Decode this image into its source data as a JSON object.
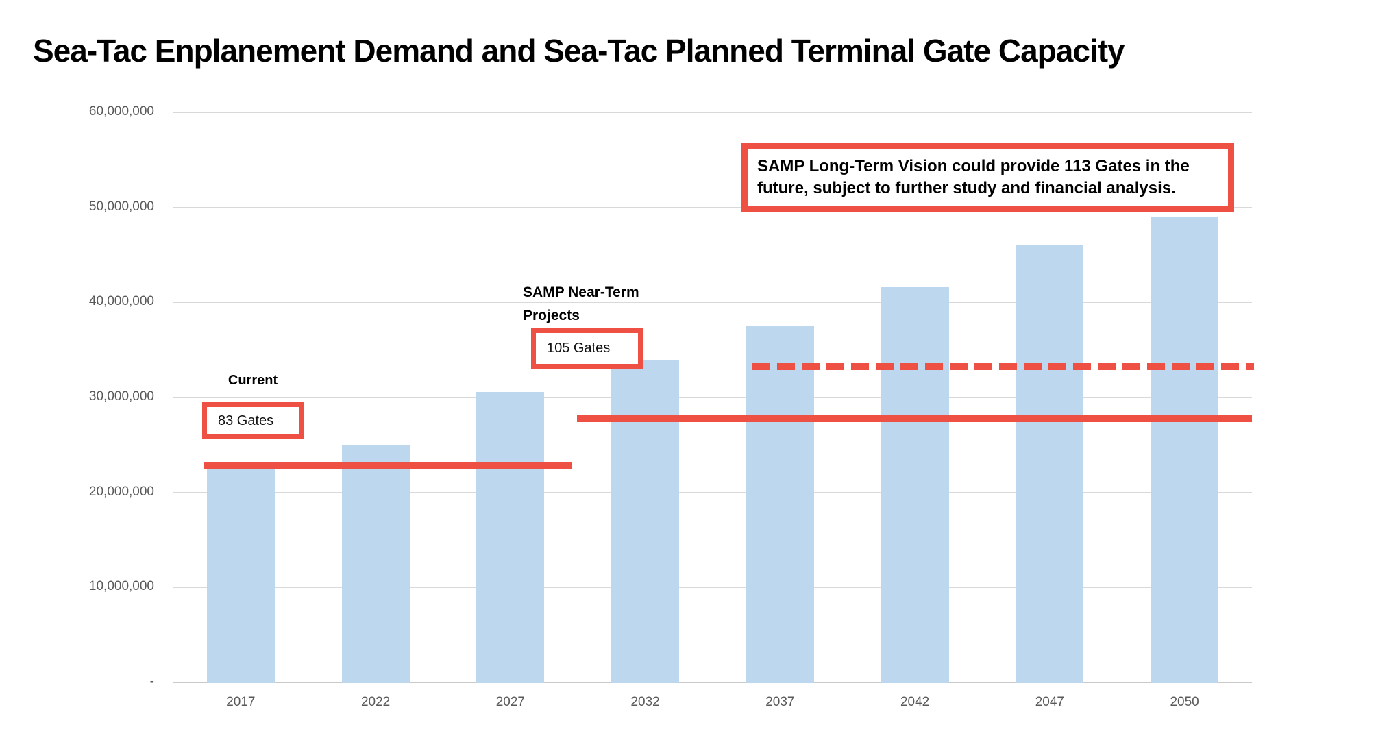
{
  "page": {
    "title": "Sea-Tac Enplanement Demand and Sea-Tac Planned Terminal Gate Capacity"
  },
  "chart_data": {
    "type": "bar",
    "title": "Sea-Tac Enplanement Demand and Sea-Tac Planned Terminal Gate Capacity",
    "categories": [
      "2017",
      "2022",
      "2027",
      "2032",
      "2037",
      "2042",
      "2047",
      "2050"
    ],
    "series": [
      {
        "name": "Enplanement Demand",
        "values": [
          22500000,
          25000000,
          30600000,
          34000000,
          37500000,
          41600000,
          46000000,
          49000000
        ]
      }
    ],
    "ylim": [
      0,
      60000000
    ],
    "ytick_interval": 10000000,
    "ytick_labels": [
      "-",
      "10,000,000",
      "20,000,000",
      "30,000,000",
      "40,000,000",
      "50,000,000",
      "60,000,000"
    ],
    "grid": true,
    "legend": "none",
    "bar_color": "#bdd7ee",
    "accent_color": "#ee5044",
    "axis_label_color": "#595959",
    "capacity_lines": [
      {
        "gates": 83,
        "value": 22800000,
        "style": "solid",
        "from_year": "2017",
        "to_year": "2027"
      },
      {
        "gates": 105,
        "value": 27800000,
        "style": "solid",
        "from_year": "2032",
        "to_year": "2050"
      },
      {
        "gates": 113,
        "value": 33300000,
        "style": "dashed",
        "from_year": "2037",
        "to_year": "2050"
      }
    ],
    "annotations": {
      "current_label": "Current",
      "current_box": "83 Gates",
      "near_term_label": "SAMP Near-Term\nProjects",
      "near_term_box": "105 Gates",
      "long_term_note": "SAMP Long-Term Vision could provide 113 Gates in the future, subject to further study and financial analysis."
    }
  }
}
